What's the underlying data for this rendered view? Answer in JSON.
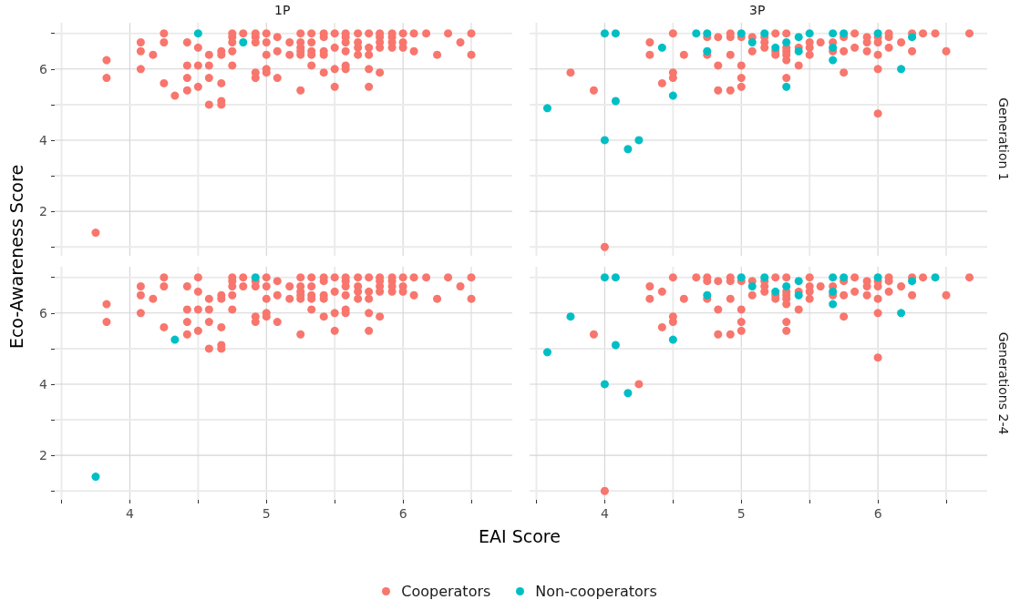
{
  "chart_data": [
    {
      "type": "scatter",
      "title": "1P",
      "ylabel": "Eco-Awareness Score",
      "legend": "bottom",
      "xlim": [
        3.45,
        6.8
      ],
      "ylim": [
        0.75,
        7.3
      ],
      "xticks": [
        {
          "value": 3.5,
          "label": null
        },
        4,
        {
          "value": 4.5,
          "label": null
        },
        5,
        {
          "value": 5.5,
          "label": null
        },
        6,
        {
          "value": 6.5,
          "label": null
        }
      ],
      "yticks": [
        {
          "value": 1,
          "label": null
        },
        2,
        {
          "value": 3,
          "label": null
        },
        4,
        {
          "value": 5,
          "label": null
        },
        6,
        {
          "value": 7,
          "label": null
        }
      ],
      "tick_labels": "y",
      "grid": true,
      "marker": "circle",
      "series": [
        {
          "name": "Cooperators",
          "color": "#f8766d",
          "x": [
            3.75,
            3.83,
            3.83,
            4.08,
            4.08,
            4.08,
            4.17,
            4.25,
            4.25,
            4.25,
            4.33,
            4.42,
            4.42,
            4.42,
            4.42,
            4.5,
            4.5,
            4.5,
            4.58,
            4.58,
            4.58,
            4.58,
            4.67,
            4.67,
            4.67,
            4.67,
            4.67,
            4.75,
            4.75,
            4.75,
            4.75,
            4.75,
            4.83,
            4.92,
            4.92,
            4.92,
            4.92,
            4.92,
            5,
            5,
            5,
            5,
            5,
            5.08,
            5.08,
            5.08,
            5.17,
            5.17,
            5.25,
            5.25,
            5.25,
            5.25,
            5.25,
            5.25,
            5.33,
            5.33,
            5.33,
            5.33,
            5.33,
            5.42,
            5.42,
            5.42,
            5.42,
            5.42,
            5.5,
            5.5,
            5.5,
            5.5,
            5.58,
            5.58,
            5.58,
            5.58,
            5.58,
            5.58,
            5.67,
            5.67,
            5.67,
            5.67,
            5.75,
            5.75,
            5.75,
            5.75,
            5.75,
            5.83,
            5.83,
            5.83,
            5.83,
            5.83,
            5.92,
            5.92,
            5.92,
            5.92,
            6,
            6,
            6,
            6.08,
            6.08,
            6.17,
            6.25,
            6.33,
            6.42,
            6.5,
            6.5
          ],
          "values": [
            1.4,
            6.25,
            5.75,
            6.75,
            6.5,
            6,
            6.4,
            7,
            6.75,
            5.6,
            5.25,
            6.75,
            6.1,
            5.75,
            5.4,
            6.6,
            6.1,
            5.5,
            6.4,
            6.1,
            5.75,
            5,
            6.5,
            6.4,
            5.6,
            5.1,
            5,
            7,
            6.9,
            6.75,
            6.5,
            6.1,
            7,
            7,
            6.9,
            6.75,
            5.9,
            5.75,
            7,
            6.75,
            6.4,
            6,
            5.9,
            6.9,
            6.5,
            5.75,
            6.75,
            6.4,
            7,
            6.75,
            6.6,
            6.5,
            6.4,
            5.4,
            7,
            6.75,
            6.5,
            6.4,
            6.1,
            7,
            6.9,
            6.5,
            6.4,
            5.9,
            7,
            6.6,
            6,
            5.5,
            7,
            6.9,
            6.75,
            6.5,
            6.1,
            6,
            7,
            6.75,
            6.6,
            6.4,
            7,
            6.6,
            6.4,
            6,
            5.5,
            7,
            6.9,
            6.75,
            6.6,
            5.9,
            7,
            6.9,
            6.75,
            6.6,
            7,
            6.75,
            6.6,
            7,
            6.5,
            7,
            6.4,
            7,
            6.75,
            7,
            6.4
          ]
        },
        {
          "name": "Non-cooperators",
          "color": "#00bfc4",
          "x": [
            4.5,
            4.83
          ],
          "values": [
            7,
            6.75
          ]
        }
      ]
    },
    {
      "type": "scatter",
      "title": "3P",
      "annotations": [
        "Generation 1"
      ],
      "xlim": [
        3.45,
        6.8
      ],
      "ylim": [
        0.75,
        7.3
      ],
      "xticks": [
        {
          "value": 3.5,
          "label": null
        },
        4,
        {
          "value": 4.5,
          "label": null
        },
        5,
        {
          "value": 5.5,
          "label": null
        },
        6,
        {
          "value": 6.5,
          "label": null
        }
      ],
      "yticks": [
        {
          "value": 1,
          "label": null
        },
        2,
        {
          "value": 3,
          "label": null
        },
        4,
        {
          "value": 5,
          "label": null
        },
        6,
        {
          "value": 7,
          "label": null
        }
      ],
      "tick_labels": false,
      "grid": true,
      "marker": "circle",
      "series": [
        {
          "name": "Cooperators",
          "color": "#f8766d",
          "x": [
            3.75,
            3.92,
            4,
            4.33,
            4.33,
            4.42,
            4.5,
            4.5,
            4.5,
            4.58,
            4.75,
            4.75,
            4.83,
            4.83,
            4.83,
            4.92,
            4.92,
            4.92,
            4.92,
            5,
            5,
            5,
            5,
            5.08,
            5.08,
            5.17,
            5.17,
            5.17,
            5.25,
            5.25,
            5.25,
            5.33,
            5.33,
            5.33,
            5.33,
            5.33,
            5.33,
            5.42,
            5.42,
            5.5,
            5.5,
            5.5,
            5.58,
            5.67,
            5.67,
            5.75,
            5.75,
            5.75,
            5.83,
            5.83,
            5.92,
            5.92,
            5.92,
            6,
            6,
            6,
            6,
            6,
            6.08,
            6.08,
            6.08,
            6.17,
            6.25,
            6.25,
            6.33,
            6.42,
            6.5,
            6.67
          ],
          "values": [
            5.9,
            5.4,
            1,
            6.75,
            6.4,
            5.6,
            7,
            5.9,
            5.75,
            6.4,
            6.9,
            6.4,
            6.9,
            6.1,
            5.4,
            7,
            6.9,
            6.4,
            5.4,
            6.9,
            6.1,
            5.75,
            5.5,
            6.9,
            6.5,
            6.9,
            6.75,
            6.6,
            7,
            6.5,
            6.4,
            7,
            6.6,
            6.5,
            6.4,
            6.25,
            5.75,
            6.6,
            6.1,
            6.75,
            6.6,
            6.4,
            6.75,
            6.75,
            6.5,
            6.9,
            6.5,
            5.9,
            7,
            6.6,
            6.9,
            6.75,
            6.5,
            6.9,
            6.75,
            6.4,
            6,
            4.75,
            7,
            6.9,
            6.6,
            6.75,
            7,
            6.5,
            7,
            7,
            6.5,
            7
          ]
        },
        {
          "name": "Non-cooperators",
          "color": "#00bfc4",
          "x": [
            3.58,
            4,
            4.08,
            4.08,
            4,
            4.17,
            4.25,
            4.42,
            4.5,
            4.67,
            4.75,
            4.75,
            5,
            5.08,
            5.17,
            5.25,
            5.33,
            5.33,
            5.42,
            5.42,
            5.5,
            5.67,
            5.67,
            5.67,
            5.75,
            6,
            6.17,
            6.25
          ],
          "values": [
            4.9,
            7,
            7,
            5.1,
            4,
            3.75,
            4,
            6.6,
            5.25,
            7,
            7,
            6.5,
            7,
            6.75,
            7,
            6.6,
            6.75,
            5.5,
            6.9,
            6.5,
            7,
            7,
            6.6,
            6.25,
            7,
            7,
            6,
            6.9
          ]
        }
      ]
    },
    {
      "type": "scatter",
      "xlabel": "EAI Score",
      "xlim": [
        3.45,
        6.8
      ],
      "ylim": [
        0.75,
        7.3
      ],
      "xticks": [
        {
          "value": 3.5,
          "label": null
        },
        4,
        {
          "value": 4.5,
          "label": null
        },
        5,
        {
          "value": 5.5,
          "label": null
        },
        6,
        {
          "value": 6.5,
          "label": null
        }
      ],
      "yticks": [
        {
          "value": 1,
          "label": null
        },
        2,
        {
          "value": 3,
          "label": null
        },
        4,
        {
          "value": 5,
          "label": null
        },
        6,
        {
          "value": 7,
          "label": null
        }
      ],
      "grid": true,
      "marker": "circle",
      "series": [
        {
          "name": "Cooperators",
          "color": "#f8766d",
          "x": [
            3.83,
            3.83,
            4.08,
            4.08,
            4.08,
            4.17,
            4.25,
            4.25,
            4.25,
            4.42,
            4.42,
            4.42,
            4.42,
            4.5,
            4.5,
            4.5,
            4.5,
            4.58,
            4.58,
            4.58,
            4.58,
            4.67,
            4.67,
            4.67,
            4.67,
            4.67,
            4.75,
            4.75,
            4.75,
            4.75,
            4.75,
            4.83,
            4.83,
            4.92,
            4.92,
            4.92,
            4.92,
            5,
            5,
            5,
            5,
            5,
            5.08,
            5.08,
            5.08,
            5.17,
            5.17,
            5.25,
            5.25,
            5.25,
            5.25,
            5.25,
            5.25,
            5.33,
            5.33,
            5.33,
            5.33,
            5.33,
            5.42,
            5.42,
            5.42,
            5.42,
            5.42,
            5.5,
            5.5,
            5.5,
            5.5,
            5.58,
            5.58,
            5.58,
            5.58,
            5.58,
            5.58,
            5.67,
            5.67,
            5.67,
            5.67,
            5.75,
            5.75,
            5.75,
            5.75,
            5.75,
            5.83,
            5.83,
            5.83,
            5.83,
            5.83,
            5.92,
            5.92,
            5.92,
            5.92,
            6,
            6,
            6,
            6.08,
            6.08,
            6.17,
            6.25,
            6.33,
            6.42,
            6.5,
            6.5
          ],
          "values": [
            6.25,
            5.75,
            6.75,
            6.5,
            6,
            6.4,
            7,
            6.75,
            5.6,
            6.75,
            6.1,
            5.75,
            5.4,
            7,
            6.6,
            6.1,
            5.5,
            6.4,
            6.1,
            5.75,
            5,
            6.5,
            6.4,
            5.6,
            5.1,
            5,
            7,
            6.9,
            6.75,
            6.5,
            6.1,
            7,
            6.75,
            6.9,
            6.75,
            5.9,
            5.75,
            7,
            6.75,
            6.4,
            6,
            5.9,
            6.9,
            6.5,
            5.75,
            6.75,
            6.4,
            7,
            6.75,
            6.6,
            6.5,
            6.4,
            5.4,
            7,
            6.75,
            6.5,
            6.4,
            6.1,
            7,
            6.9,
            6.5,
            6.4,
            5.9,
            7,
            6.6,
            6,
            5.5,
            7,
            6.9,
            6.75,
            6.5,
            6.1,
            6,
            7,
            6.75,
            6.6,
            6.4,
            7,
            6.6,
            6.4,
            6,
            5.5,
            7,
            6.9,
            6.75,
            6.6,
            5.9,
            7,
            6.9,
            6.75,
            6.6,
            7,
            6.75,
            6.6,
            7,
            6.5,
            7,
            6.4,
            7,
            6.75,
            7,
            6.4
          ]
        },
        {
          "name": "Non-cooperators",
          "color": "#00bfc4",
          "x": [
            3.75,
            4.33,
            4.92
          ],
          "values": [
            1.4,
            5.25,
            7
          ]
        }
      ]
    },
    {
      "type": "scatter",
      "annotations": [
        "Generations 2-4"
      ],
      "xlim": [
        3.45,
        6.8
      ],
      "ylim": [
        0.75,
        7.3
      ],
      "xticks": [
        {
          "value": 3.5,
          "label": null
        },
        4,
        {
          "value": 4.5,
          "label": null
        },
        5,
        {
          "value": 5.5,
          "label": null
        },
        6,
        {
          "value": 6.5,
          "label": null
        }
      ],
      "yticks": [
        {
          "value": 1,
          "label": null
        },
        2,
        {
          "value": 3,
          "label": null
        },
        4,
        {
          "value": 5,
          "label": null
        },
        6,
        {
          "value": 7,
          "label": null
        }
      ],
      "tick_labels": "x",
      "grid": true,
      "marker": "circle",
      "series": [
        {
          "name": "Cooperators",
          "color": "#f8766d",
          "x": [
            3.92,
            4,
            4.25,
            4.33,
            4.33,
            4.42,
            4.42,
            4.5,
            4.5,
            4.5,
            4.58,
            4.67,
            4.75,
            4.75,
            4.75,
            4.83,
            4.83,
            4.83,
            4.92,
            4.92,
            4.92,
            4.92,
            5,
            5,
            5,
            5,
            5.08,
            5.08,
            5.17,
            5.17,
            5.17,
            5.25,
            5.25,
            5.25,
            5.33,
            5.33,
            5.33,
            5.33,
            5.33,
            5.33,
            5.33,
            5.42,
            5.42,
            5.5,
            5.5,
            5.5,
            5.5,
            5.58,
            5.67,
            5.67,
            5.75,
            5.75,
            5.75,
            5.83,
            5.83,
            5.92,
            5.92,
            5.92,
            6,
            6,
            6,
            6,
            6,
            6.08,
            6.08,
            6.08,
            6.17,
            6.25,
            6.25,
            6.33,
            6.5,
            6.67
          ],
          "values": [
            5.4,
            1,
            4,
            6.75,
            6.4,
            6.6,
            5.6,
            7,
            5.9,
            5.75,
            6.4,
            7,
            7,
            6.9,
            6.4,
            6.9,
            6.1,
            5.4,
            7,
            6.9,
            6.4,
            5.4,
            6.9,
            6.1,
            5.75,
            5.5,
            6.9,
            6.5,
            6.9,
            6.75,
            6.6,
            7,
            6.5,
            6.4,
            7,
            6.6,
            6.5,
            6.4,
            6.25,
            5.75,
            5.5,
            6.6,
            6.1,
            7,
            6.75,
            6.6,
            6.4,
            6.75,
            6.75,
            6.5,
            6.9,
            6.5,
            5.9,
            7,
            6.6,
            6.9,
            6.75,
            6.5,
            6.9,
            6.75,
            6.4,
            6,
            4.75,
            7,
            6.9,
            6.6,
            6.75,
            7,
            6.5,
            7,
            6.5,
            7
          ]
        },
        {
          "name": "Non-cooperators",
          "color": "#00bfc4",
          "x": [
            3.58,
            3.75,
            4,
            4.08,
            4.08,
            4,
            4.17,
            4.5,
            4.75,
            5,
            5.08,
            5.17,
            5.25,
            5.33,
            5.42,
            5.42,
            5.67,
            5.67,
            5.67,
            5.75,
            6,
            6.17,
            6.25,
            6.42
          ],
          "values": [
            4.9,
            5.9,
            7,
            7,
            5.1,
            4,
            3.75,
            5.25,
            6.5,
            7,
            6.75,
            7,
            6.6,
            6.75,
            6.9,
            6.5,
            7,
            6.6,
            6.25,
            7,
            7,
            6,
            6.9,
            7
          ]
        }
      ]
    }
  ]
}
